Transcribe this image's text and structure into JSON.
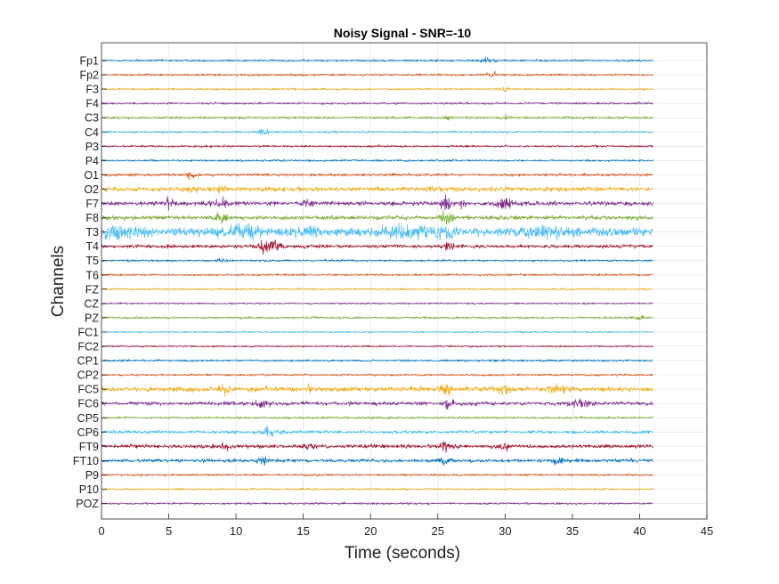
{
  "chart_data": {
    "type": "line",
    "title": "Noisy Signal - SNR=-10",
    "xlabel": "Time (seconds)",
    "ylabel": "Channels",
    "xlim": [
      0,
      45
    ],
    "x_ticks": [
      0,
      5,
      10,
      15,
      20,
      25,
      30,
      35,
      40,
      45
    ],
    "signal_end_seconds": 41,
    "grid": true,
    "colors": [
      "#0072BD",
      "#D95319",
      "#EDB120",
      "#7E2F8E",
      "#77AC30",
      "#4DBEEE",
      "#A2142F"
    ],
    "channels": [
      {
        "name": "Fp1",
        "noise": 0.6,
        "bursts": [
          [
            28.6,
            0.4,
            1.5
          ]
        ]
      },
      {
        "name": "Fp2",
        "noise": 0.6,
        "bursts": [
          [
            29.0,
            0.4,
            1.3
          ]
        ]
      },
      {
        "name": "F3",
        "noise": 0.6,
        "bursts": [
          [
            30.0,
            0.2,
            1.4
          ]
        ]
      },
      {
        "name": "F4",
        "noise": 0.6,
        "bursts": []
      },
      {
        "name": "C3",
        "noise": 0.7,
        "bursts": [
          [
            25.8,
            0.2,
            1.4
          ],
          [
            30.0,
            0.2,
            1.4
          ]
        ]
      },
      {
        "name": "C4",
        "noise": 0.7,
        "bursts": [
          [
            12.0,
            0.3,
            1.6
          ]
        ]
      },
      {
        "name": "P3",
        "noise": 0.6,
        "bursts": []
      },
      {
        "name": "P4",
        "noise": 0.6,
        "bursts": []
      },
      {
        "name": "O1",
        "noise": 0.8,
        "bursts": [
          [
            6.6,
            0.2,
            2.0
          ]
        ]
      },
      {
        "name": "O2",
        "noise": 1.4,
        "bursts": [
          [
            6.6,
            0.4,
            1.8
          ],
          [
            9.0,
            0.3,
            1.6
          ]
        ]
      },
      {
        "name": "F7",
        "noise": 1.3,
        "bursts": [
          [
            5.0,
            0.2,
            3.0
          ],
          [
            8.9,
            0.3,
            3.0
          ],
          [
            15.3,
            0.3,
            2.0
          ],
          [
            25.6,
            0.3,
            4.5
          ],
          [
            26.8,
            0.2,
            2.5
          ],
          [
            30.0,
            0.3,
            4.5
          ]
        ]
      },
      {
        "name": "F8",
        "noise": 1.2,
        "bursts": [
          [
            8.9,
            0.3,
            2.0
          ],
          [
            25.7,
            0.3,
            4.0
          ]
        ]
      },
      {
        "name": "T3",
        "noise": 2.6,
        "bursts": [
          [
            1.0,
            1.0,
            2.5
          ],
          [
            10.5,
            1.0,
            2.2
          ],
          [
            15.5,
            0.6,
            2.0
          ],
          [
            23.0,
            1.5,
            2.5
          ],
          [
            25.5,
            0.4,
            3.0
          ],
          [
            33.0,
            1.5,
            2.2
          ]
        ]
      },
      {
        "name": "T4",
        "noise": 1.0,
        "bursts": [
          [
            12.5,
            0.5,
            4.0
          ],
          [
            25.8,
            0.3,
            2.5
          ]
        ]
      },
      {
        "name": "T5",
        "noise": 0.6,
        "bursts": [
          [
            9.0,
            0.2,
            1.5
          ]
        ]
      },
      {
        "name": "T6",
        "noise": 0.6,
        "bursts": []
      },
      {
        "name": "FZ",
        "noise": 0.6,
        "bursts": []
      },
      {
        "name": "CZ",
        "noise": 0.5,
        "bursts": []
      },
      {
        "name": "PZ",
        "noise": 0.6,
        "bursts": [
          [
            40.0,
            0.2,
            1.2
          ]
        ]
      },
      {
        "name": "FC1",
        "noise": 0.5,
        "bursts": []
      },
      {
        "name": "FC2",
        "noise": 0.5,
        "bursts": []
      },
      {
        "name": "CP1",
        "noise": 0.6,
        "bursts": []
      },
      {
        "name": "CP2",
        "noise": 0.6,
        "bursts": []
      },
      {
        "name": "FC5",
        "noise": 1.5,
        "bursts": [
          [
            9.0,
            0.3,
            2.0
          ],
          [
            15.3,
            0.3,
            2.0
          ],
          [
            25.6,
            0.3,
            2.8
          ],
          [
            30.0,
            0.2,
            4.0
          ],
          [
            34.0,
            0.5,
            1.6
          ]
        ]
      },
      {
        "name": "FC6",
        "noise": 1.1,
        "bursts": [
          [
            12.0,
            0.3,
            2.0
          ],
          [
            25.8,
            0.2,
            4.0
          ],
          [
            35.5,
            0.5,
            1.6
          ]
        ]
      },
      {
        "name": "CP5",
        "noise": 0.6,
        "bursts": []
      },
      {
        "name": "CP6",
        "noise": 1.0,
        "bursts": [
          [
            12.5,
            0.5,
            2.6
          ]
        ]
      },
      {
        "name": "FT9",
        "noise": 1.1,
        "bursts": [
          [
            9.0,
            0.3,
            2.0
          ],
          [
            15.5,
            0.3,
            2.0
          ],
          [
            25.6,
            0.3,
            2.2
          ],
          [
            30.0,
            0.2,
            3.0
          ]
        ]
      },
      {
        "name": "FT10",
        "noise": 1.0,
        "bursts": [
          [
            12.0,
            0.3,
            2.5
          ],
          [
            25.5,
            0.3,
            2.5
          ],
          [
            34.0,
            0.4,
            1.5
          ]
        ]
      },
      {
        "name": "P9",
        "noise": 0.6,
        "bursts": []
      },
      {
        "name": "P10",
        "noise": 0.6,
        "bursts": []
      },
      {
        "name": "POZ",
        "noise": 0.6,
        "bursts": []
      }
    ]
  }
}
